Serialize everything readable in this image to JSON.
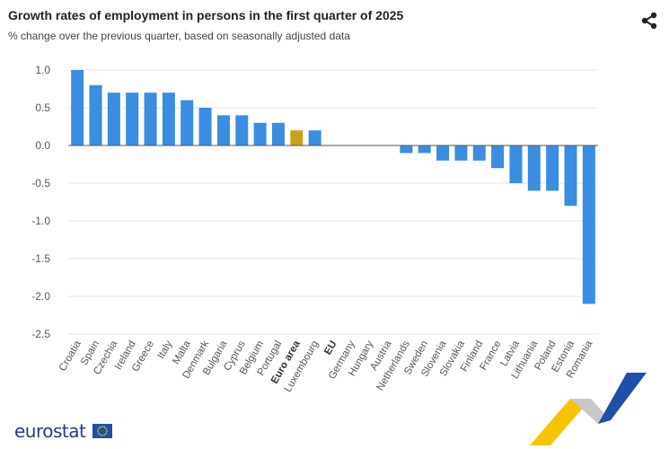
{
  "header": {
    "title": "Growth rates of employment in persons in the first quarter of 2025",
    "subtitle": "% change over the previous quarter, based on seasonally adjusted data"
  },
  "share_icon": "share-icon",
  "logo": {
    "text": "eurostat",
    "flag_icon": "eu-flag-icon"
  },
  "colors": {
    "bar": "#3a8de0",
    "highlight": "#c9a21c",
    "grid": "#e3e3e3",
    "axis_text": "#555555"
  },
  "chart_data": {
    "type": "bar",
    "title": "",
    "xlabel": "",
    "ylabel": "",
    "ylim": [
      -2.5,
      1.0
    ],
    "yticks": [
      1.0,
      0.5,
      0.0,
      -0.5,
      -1.0,
      -1.5,
      -2.0,
      -2.5
    ],
    "ytick_labels": [
      "1.0",
      "0.5",
      "0.0",
      "-0.5",
      "-1.0",
      "-1.5",
      "-2.0",
      "-2.5"
    ],
    "grid": true,
    "categories": [
      "Croatia",
      "Spain",
      "Czechia",
      "Ireland",
      "Greece",
      "Italy",
      "Malta",
      "Denmark",
      "Bulgaria",
      "Cyprus",
      "Belgium",
      "Portugal",
      "Euro area",
      "Luxembourg",
      "EU",
      "Germany",
      "Hungary",
      "Austria",
      "Netherlands",
      "Sweden",
      "Slovenia",
      "Slovakia",
      "Finland",
      "France",
      "Latvia",
      "Lithuania",
      "Poland",
      "Estonia",
      "Romania"
    ],
    "bold_categories": [
      "Euro area",
      "EU"
    ],
    "highlight_categories": [
      "Euro area"
    ],
    "values": [
      1.0,
      0.8,
      0.7,
      0.7,
      0.7,
      0.7,
      0.6,
      0.5,
      0.4,
      0.4,
      0.3,
      0.3,
      0.2,
      0.2,
      0.0,
      0.0,
      0.0,
      0.0,
      -0.1,
      -0.1,
      -0.2,
      -0.2,
      -0.2,
      -0.3,
      -0.5,
      -0.6,
      -0.6,
      -0.8,
      -2.1
    ]
  }
}
